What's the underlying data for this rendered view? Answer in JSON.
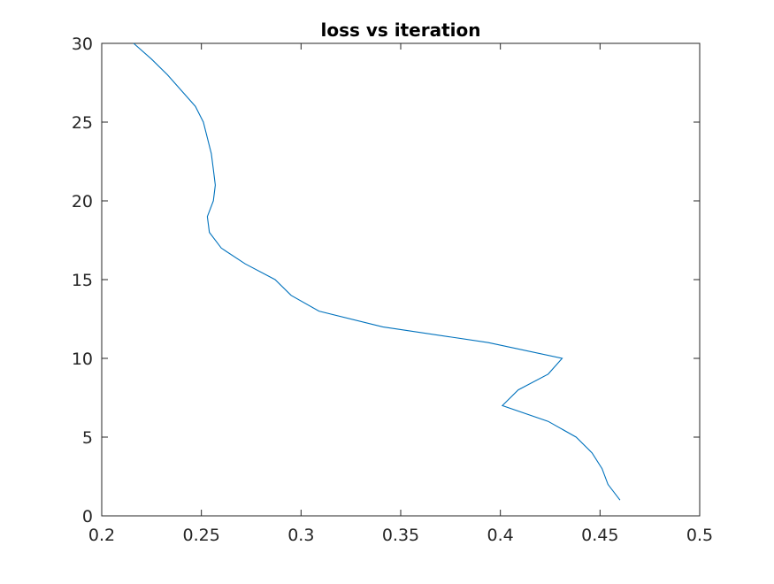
{
  "chart_data": {
    "type": "line",
    "title": "loss vs iteration",
    "xlabel": "",
    "ylabel": "",
    "xlim": [
      0.2,
      0.5
    ],
    "ylim": [
      0,
      30
    ],
    "xticks": [
      0.2,
      0.25,
      0.3,
      0.35,
      0.4,
      0.45,
      0.5
    ],
    "xtick_labels": [
      "0.2",
      "0.25",
      "0.3",
      "0.35",
      "0.4",
      "0.45",
      "0.5"
    ],
    "yticks": [
      0,
      5,
      10,
      15,
      20,
      25,
      30
    ],
    "ytick_labels": [
      "0",
      "5",
      "10",
      "15",
      "20",
      "25",
      "30"
    ],
    "grid": false,
    "legend": "none",
    "line_color": "#0072BD",
    "series": [
      {
        "points": [
          [
            0.46,
            1
          ],
          [
            0.454,
            2
          ],
          [
            0.451,
            3
          ],
          [
            0.446,
            4
          ],
          [
            0.438,
            5
          ],
          [
            0.424,
            6
          ],
          [
            0.401,
            7
          ],
          [
            0.409,
            8
          ],
          [
            0.424,
            9
          ],
          [
            0.431,
            10
          ],
          [
            0.394,
            11
          ],
          [
            0.341,
            12
          ],
          [
            0.309,
            13
          ],
          [
            0.295,
            14
          ],
          [
            0.287,
            15
          ],
          [
            0.272,
            16
          ],
          [
            0.26,
            17
          ],
          [
            0.254,
            18
          ],
          [
            0.253,
            19
          ],
          [
            0.256,
            20
          ],
          [
            0.257,
            21
          ],
          [
            0.256,
            22
          ],
          [
            0.255,
            23
          ],
          [
            0.253,
            24
          ],
          [
            0.251,
            25
          ],
          [
            0.247,
            26
          ],
          [
            0.24,
            27
          ],
          [
            0.233,
            28
          ],
          [
            0.225,
            29
          ],
          [
            0.216,
            30
          ]
        ]
      }
    ]
  }
}
